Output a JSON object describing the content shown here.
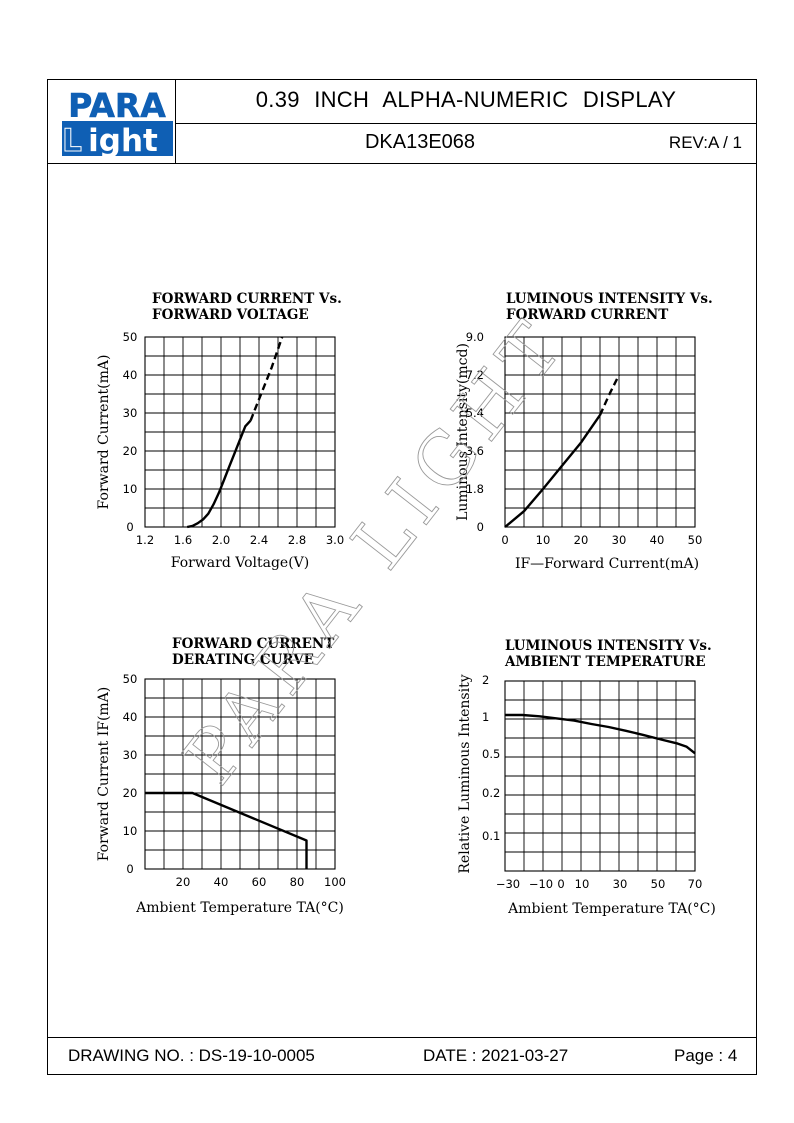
{
  "header": {
    "logo_top": "PARA",
    "logo_bottom": "ight",
    "logo_l": "L",
    "title": "0.39  INCH  ALPHA-NUMERIC  DISPLAY",
    "part_number": "DKA13E068",
    "revision": "REV:A / 1"
  },
  "footer": {
    "drawing_no": "DRAWING NO. : DS-19-10-0005",
    "date": "DATE : 2021-03-27",
    "page": "Page : 4"
  },
  "watermark": "PARA LIGHT",
  "chart_data": [
    {
      "type": "line",
      "title": [
        "FORWARD  CURRENT  Vs.",
        "FORWARD  VOLTAGE"
      ],
      "xlabel": "Forward  Voltage(V)",
      "ylabel": "Forward  Current(mA)",
      "xlim": [
        1.2,
        3.0
      ],
      "ylim": [
        0,
        50
      ],
      "xticks": [
        "1.2",
        "1.6",
        "2.0",
        "2.4",
        "2.8",
        "3.0"
      ],
      "yticks": [
        "0",
        "10",
        "20",
        "30",
        "40",
        "50"
      ],
      "grid": true,
      "series": [
        {
          "style": "solid",
          "x": [
            1.6,
            1.65,
            1.7,
            1.75,
            1.8,
            1.85,
            1.9,
            1.95,
            2.0,
            2.05,
            2.1,
            2.15,
            2.2
          ],
          "y": [
            0,
            0.3,
            1,
            2,
            3.5,
            6,
            9,
            12.5,
            16,
            19.5,
            23,
            26.5,
            28
          ]
        },
        {
          "style": "dashed",
          "x": [
            2.2,
            2.25,
            2.3,
            2.35,
            2.4,
            2.45,
            2.5
          ],
          "y": [
            28,
            31.5,
            35,
            38.5,
            42,
            46,
            50
          ]
        }
      ]
    },
    {
      "type": "line",
      "title": [
        "LUMINOUS  INTENSITY  Vs.",
        "FORWARD  CURRENT"
      ],
      "xlabel": "IF—Forward  Current(mA)",
      "ylabel": "Luminous  Intensity(mcd)",
      "xlim": [
        0,
        50
      ],
      "ylim": [
        0,
        9.0
      ],
      "xticks": [
        "0",
        "10",
        "20",
        "30",
        "40",
        "50"
      ],
      "yticks": [
        "0",
        "1.8",
        "3.6",
        "5.4",
        "7.2",
        "9.0"
      ],
      "grid": true,
      "series": [
        {
          "style": "solid",
          "x": [
            0,
            5,
            10,
            15,
            20,
            25
          ],
          "y": [
            0,
            0.75,
            1.8,
            2.9,
            4.0,
            5.3
          ]
        },
        {
          "style": "dashed",
          "x": [
            25,
            27.5,
            30
          ],
          "y": [
            5.3,
            6.3,
            7.2
          ]
        }
      ]
    },
    {
      "type": "line",
      "title": [
        "FORWARD  CURRENT",
        "DERATING  CURVE"
      ],
      "xlabel": "Ambient  Temperature  TA(°C)",
      "ylabel": "Forward  Current  IF(mA)",
      "xlim": [
        0,
        100
      ],
      "ylim": [
        0,
        50
      ],
      "xticks": [
        "20",
        "40",
        "60",
        "80",
        "100"
      ],
      "yticks": [
        "0",
        "10",
        "20",
        "30",
        "40",
        "50"
      ],
      "grid": true,
      "series": [
        {
          "style": "solid",
          "x": [
            0,
            25,
            85,
            85
          ],
          "y": [
            20,
            20,
            7.5,
            0
          ]
        }
      ]
    },
    {
      "type": "line",
      "title": [
        "LUMINOUS  INTENSITY  Vs.",
        "AMBIENT  TEMPERATURE"
      ],
      "xlabel": "Ambient  Temperature  TA(°C)",
      "ylabel": "Relative  Luminous  Intensity",
      "xticks": [
        "−30",
        "−10",
        "0",
        "10",
        "30",
        "50",
        "70"
      ],
      "yticks": [
        "2",
        "1",
        "0.5",
        "0.2",
        "0.1"
      ],
      "yscale": "log",
      "grid": true,
      "series": [
        {
          "style": "solid",
          "x": [
            -40,
            -30,
            -20,
            -10,
            0,
            10,
            20,
            30,
            40,
            50,
            60,
            65,
            70
          ],
          "y": [
            1.2,
            1.2,
            1.17,
            1.12,
            1.07,
            1.0,
            0.94,
            0.87,
            0.8,
            0.73,
            0.67,
            0.63,
            0.55
          ]
        }
      ]
    }
  ]
}
